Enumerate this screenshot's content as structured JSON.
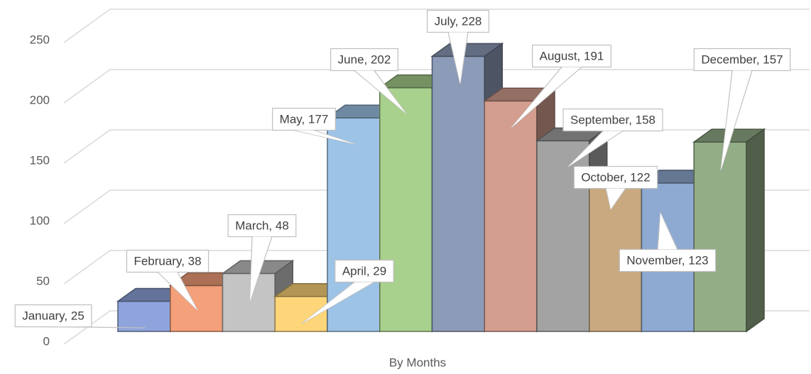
{
  "chart_data": {
    "type": "bar3d",
    "x_label": "By Months",
    "categories": [
      "January",
      "February",
      "March",
      "April",
      "May",
      "June",
      "July",
      "August",
      "September",
      "October",
      "November",
      "December"
    ],
    "values": [
      25,
      38,
      48,
      29,
      177,
      202,
      228,
      191,
      158,
      122,
      123,
      157
    ],
    "value_labels": [
      "January, 25",
      "February, 38",
      "March, 48",
      "April, 29",
      "May, 177",
      "June, 202",
      "July, 228",
      "August, 191",
      "September, 158",
      "October, 122",
      "November, 123",
      "December, 157"
    ],
    "colors": [
      "#8fa4dc",
      "#f4a07a",
      "#c4c4c4",
      "#ffd57a",
      "#9dc3e6",
      "#a9d18e",
      "#8c9bb8",
      "#d39e8f",
      "#a3a3a3",
      "#c9a980",
      "#8faad2",
      "#93ad86"
    ],
    "ylim": [
      0,
      250
    ],
    "yticks": [
      0,
      50,
      100,
      150,
      200,
      250
    ],
    "grid": true
  }
}
